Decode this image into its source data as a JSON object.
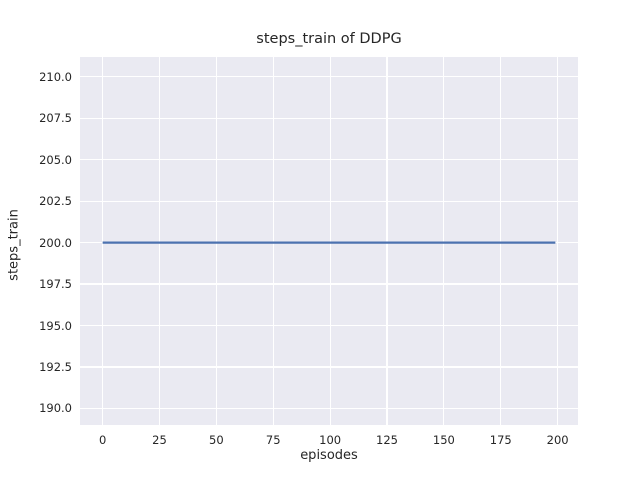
{
  "chart_data": {
    "type": "line",
    "title": "steps_train of DDPG",
    "xlabel": "episodes",
    "ylabel": "steps_train",
    "xlim": [
      -9.95,
      208.95
    ],
    "ylim": [
      189.0,
      211.2
    ],
    "xticks": [
      0,
      25,
      50,
      75,
      100,
      125,
      150,
      175,
      200
    ],
    "xtick_labels": [
      "0",
      "25",
      "50",
      "75",
      "100",
      "125",
      "150",
      "175",
      "200"
    ],
    "yticks": [
      190.0,
      192.5,
      195.0,
      197.5,
      200.0,
      202.5,
      205.0,
      207.5,
      210.0
    ],
    "ytick_labels": [
      "190.0",
      "192.5",
      "195.0",
      "197.5",
      "200.0",
      "202.5",
      "205.0",
      "207.5",
      "210.0"
    ],
    "grid": true,
    "legend": false,
    "series": [
      {
        "name": "steps_train",
        "color": "#4c72b0",
        "x": [
          0,
          199
        ],
        "y": [
          200,
          200
        ]
      }
    ],
    "colors": {
      "plot_background": "#eaeaf2",
      "figure_background": "#ffffff",
      "gridline": "#ffffff",
      "text": "#262626",
      "line": "#4c72b0"
    }
  }
}
